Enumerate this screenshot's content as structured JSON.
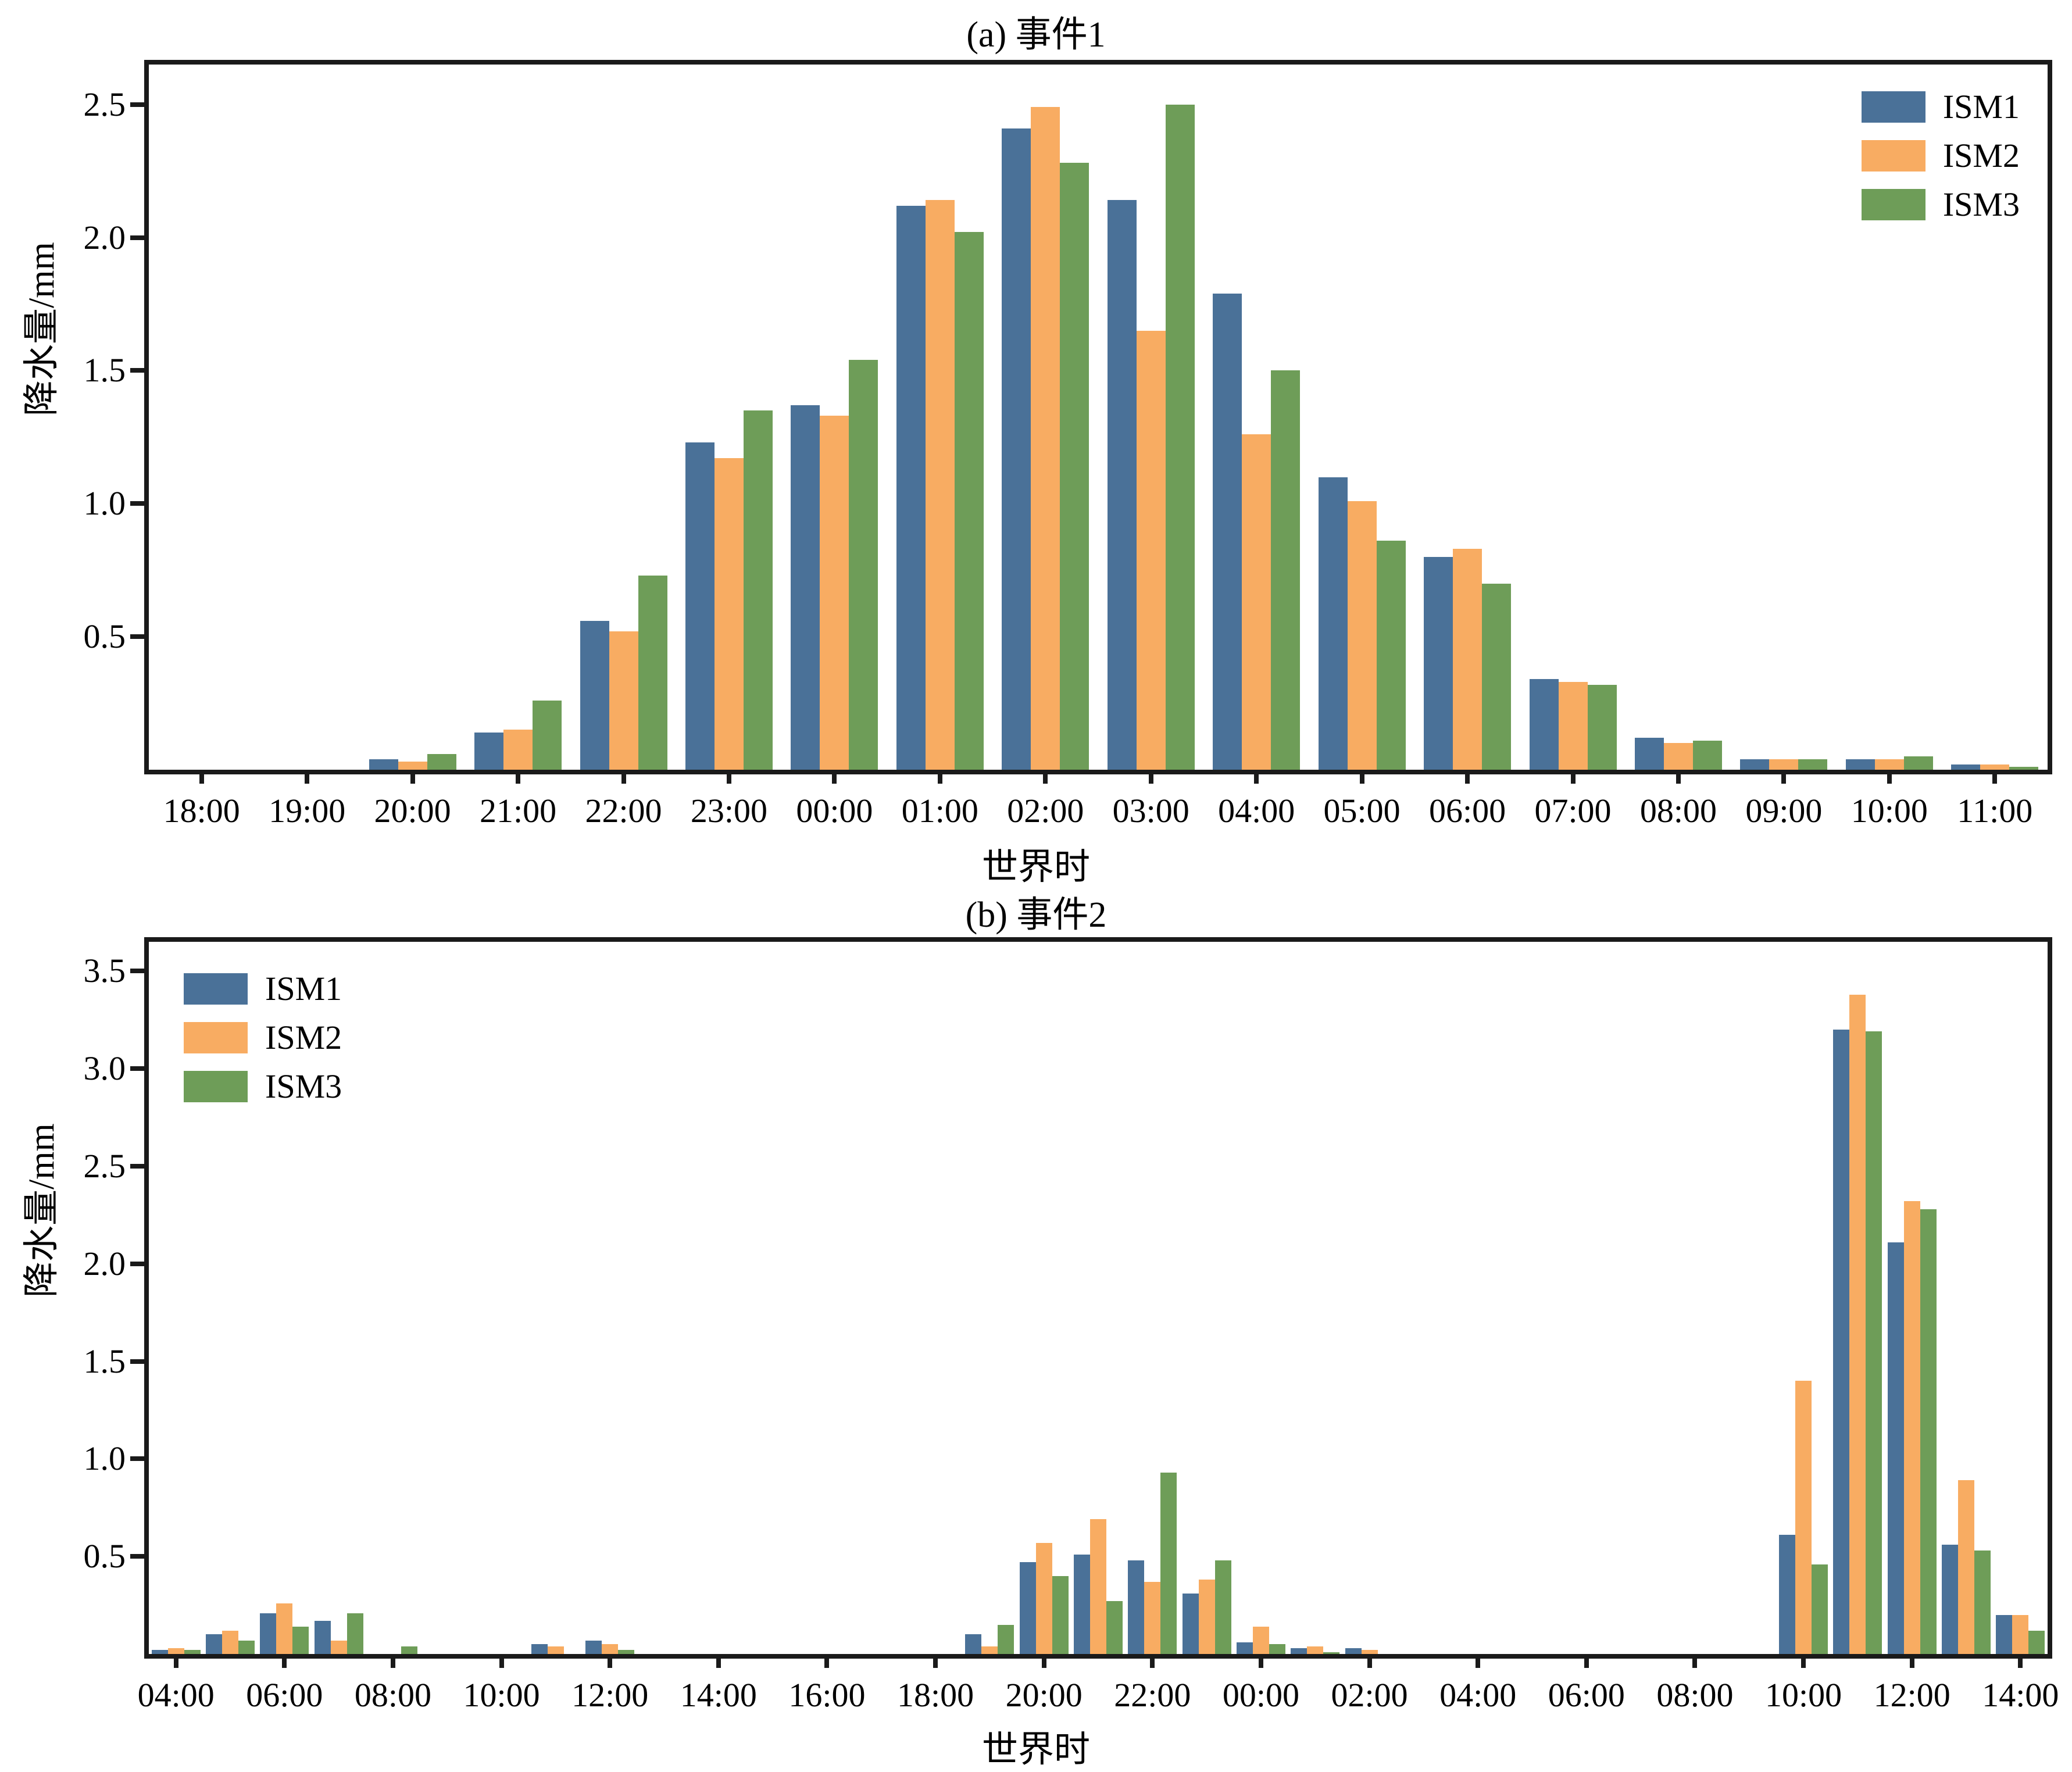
{
  "figure": {
    "series_names": [
      "ISM1",
      "ISM2",
      "ISM3"
    ],
    "colors": {
      "ism1": "#4A7198",
      "ism2": "#F8AC62",
      "ism3": "#6E9D58"
    }
  },
  "chart_data": [
    {
      "id": "a",
      "type": "bar",
      "title": "(a) 事件1",
      "xlabel": "世界时",
      "ylabel": "降水量/mm",
      "legend_position": "top-right",
      "grid": false,
      "ylim": [
        0,
        2.65
      ],
      "yticks": [
        0.5,
        1.0,
        1.5,
        2.0,
        2.5
      ],
      "xtick_every": 1,
      "categories": [
        "18:00",
        "19:00",
        "20:00",
        "21:00",
        "22:00",
        "23:00",
        "00:00",
        "01:00",
        "02:00",
        "03:00",
        "04:00",
        "05:00",
        "06:00",
        "07:00",
        "08:00",
        "09:00",
        "10:00",
        "11:00"
      ],
      "series": [
        {
          "name": "ISM1",
          "color": "#4A7198",
          "values": [
            0,
            0,
            0.04,
            0.14,
            0.56,
            1.23,
            1.37,
            2.12,
            2.41,
            2.14,
            1.79,
            1.1,
            0.8,
            0.34,
            0.12,
            0.04,
            0.04,
            0.02
          ]
        },
        {
          "name": "ISM2",
          "color": "#F8AC62",
          "values": [
            0,
            0,
            0.03,
            0.15,
            0.52,
            1.17,
            1.33,
            2.14,
            2.49,
            1.65,
            1.26,
            1.01,
            0.83,
            0.33,
            0.1,
            0.04,
            0.04,
            0.02
          ]
        },
        {
          "name": "ISM3",
          "color": "#6E9D58",
          "values": [
            0,
            0,
            0.06,
            0.26,
            0.73,
            1.35,
            1.54,
            2.02,
            2.28,
            2.5,
            1.5,
            0.86,
            0.7,
            0.32,
            0.11,
            0.04,
            0.05,
            0.01
          ]
        }
      ]
    },
    {
      "id": "b",
      "type": "bar",
      "title": "(b) 事件2",
      "xlabel": "世界时",
      "ylabel": "降水量/mm",
      "legend_position": "top-left",
      "grid": false,
      "ylim": [
        0,
        3.65
      ],
      "yticks": [
        0.5,
        1.0,
        1.5,
        2.0,
        2.5,
        3.0,
        3.5
      ],
      "xtick_every": 2,
      "categories": [
        "04:00",
        "05:00",
        "06:00",
        "07:00",
        "08:00",
        "09:00",
        "10:00",
        "11:00",
        "12:00",
        "13:00",
        "14:00",
        "15:00",
        "16:00",
        "17:00",
        "18:00",
        "19:00",
        "20:00",
        "21:00",
        "22:00",
        "23:00",
        "00:00",
        "01:00",
        "02:00",
        "03:00",
        "04:00",
        "05:00",
        "06:00",
        "07:00",
        "08:00",
        "09:00",
        "10:00",
        "11:00",
        "12:00",
        "13:00",
        "14:00"
      ],
      "series": [
        {
          "name": "ISM1",
          "color": "#4A7198",
          "values": [
            0.02,
            0.1,
            0.21,
            0.17,
            0,
            0,
            0,
            0.05,
            0.07,
            0,
            0,
            0,
            0,
            0,
            0,
            0.1,
            0.47,
            0.51,
            0.48,
            0.31,
            0.06,
            0.03,
            0.03,
            0,
            0,
            0,
            0,
            0,
            0,
            0,
            0.61,
            3.2,
            2.11,
            0.56,
            0.2
          ]
        },
        {
          "name": "ISM2",
          "color": "#F8AC62",
          "values": [
            0.03,
            0.12,
            0.26,
            0.07,
            0,
            0,
            0,
            0.04,
            0.05,
            0,
            0,
            0,
            0,
            0,
            0,
            0.04,
            0.57,
            0.69,
            0.37,
            0.38,
            0.14,
            0.04,
            0.02,
            0,
            0,
            0,
            0,
            0,
            0,
            0,
            1.4,
            3.38,
            2.32,
            0.89,
            0.2
          ]
        },
        {
          "name": "ISM3",
          "color": "#6E9D58",
          "values": [
            0.02,
            0.07,
            0.14,
            0.21,
            0.04,
            0,
            0,
            0,
            0.02,
            0,
            0,
            0,
            0,
            0,
            0,
            0.15,
            0.4,
            0.27,
            0.93,
            0.48,
            0.05,
            0.01,
            0,
            0,
            0,
            0,
            0,
            0,
            0,
            0,
            0.46,
            3.19,
            2.28,
            0.53,
            0.12
          ]
        }
      ]
    }
  ]
}
